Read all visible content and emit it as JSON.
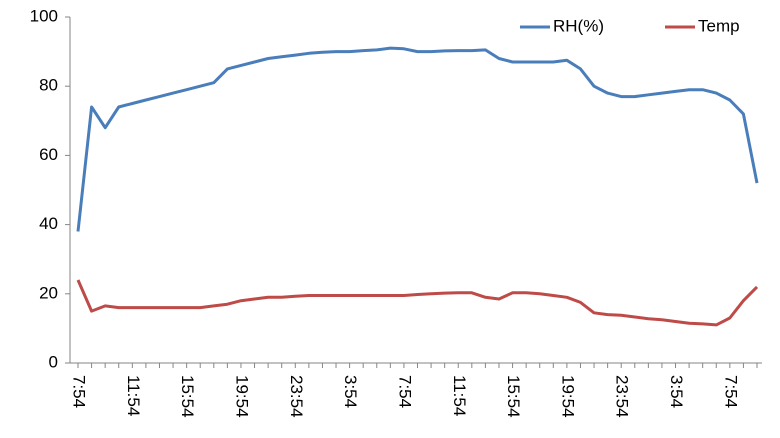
{
  "chart_data": {
    "type": "line",
    "categories": [
      "7:54",
      null,
      null,
      null,
      "11:54",
      null,
      null,
      null,
      "15:54",
      null,
      null,
      null,
      "19:54",
      null,
      null,
      null,
      "23:54",
      null,
      null,
      null,
      "3:54",
      null,
      null,
      null,
      "7:54",
      null,
      null,
      null,
      "11:54",
      null,
      null,
      null,
      "15:54",
      null,
      null,
      null,
      "19:54",
      null,
      null,
      null,
      "23:54",
      null,
      null,
      null,
      "3:54",
      null,
      null,
      null,
      "7:54",
      null,
      null
    ],
    "series": [
      {
        "name": "RH(%)",
        "color": "#4a7ebb",
        "values": [
          38,
          74,
          68,
          74,
          75,
          76,
          77,
          78,
          79,
          80,
          81,
          85,
          86,
          87,
          88,
          88.5,
          89,
          89.5,
          89.8,
          90,
          90,
          90.3,
          90.5,
          91,
          90.8,
          90,
          90,
          90.2,
          90.3,
          90.3,
          90.5,
          88,
          87,
          87,
          87,
          87,
          87.5,
          85,
          80,
          78,
          77,
          77,
          77.5,
          78,
          78.5,
          79,
          79,
          78,
          76,
          72,
          52
        ]
      },
      {
        "name": "Temp",
        "color": "#be4b48",
        "values": [
          24,
          15,
          16.5,
          16,
          16,
          16,
          16,
          16,
          16,
          16,
          16.5,
          17,
          18,
          18.5,
          19,
          19,
          19.3,
          19.5,
          19.5,
          19.5,
          19.5,
          19.5,
          19.5,
          19.5,
          19.5,
          19.8,
          20,
          20.2,
          20.3,
          20.3,
          19,
          18.5,
          20.3,
          20.3,
          20,
          19.5,
          19,
          17.5,
          14.5,
          14,
          13.8,
          13.3,
          12.8,
          12.5,
          12,
          11.5,
          11.3,
          11,
          13,
          18,
          22
        ]
      }
    ],
    "ylim": [
      0,
      100
    ],
    "yticks": [
      0,
      20,
      40,
      60,
      80,
      100
    ],
    "grid": false,
    "legend": "top-right"
  }
}
